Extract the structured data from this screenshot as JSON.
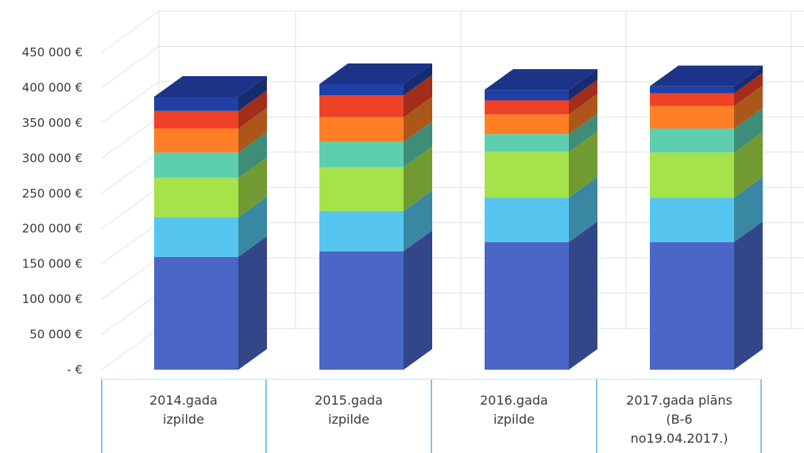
{
  "chart_data": {
    "type": "bar",
    "stacked": true,
    "three_d": true,
    "title": "",
    "xlabel": "",
    "ylabel": "",
    "ylim": [
      0,
      450000
    ],
    "y_ticks": [
      "- €",
      "50 000 €",
      "100 000 €",
      "150 000 €",
      "200 000 €",
      "250 000 €",
      "300 000 €",
      "350 000 €",
      "400 000 €",
      "450 000 €"
    ],
    "y_tick_values": [
      0,
      50000,
      100000,
      150000,
      200000,
      250000,
      300000,
      350000,
      400000,
      450000
    ],
    "grid": true,
    "legend": "none",
    "categories": [
      [
        "2014.gada",
        "izpilde"
      ],
      [
        "2015.gada",
        "izpilde"
      ],
      [
        "2016.gada",
        "izpilde"
      ],
      [
        "2017.gada plāns",
        "(B-6",
        "no19.04.2017.)"
      ]
    ],
    "series": [
      {
        "color": "#4A67C8",
        "values": [
          160000,
          168000,
          181000,
          181000
        ]
      },
      {
        "color": "#56C6F0",
        "values": [
          56000,
          57000,
          63000,
          63000
        ]
      },
      {
        "color": "#A6E34A",
        "values": [
          56000,
          62000,
          65000,
          64000
        ]
      },
      {
        "color": "#5DCFAE",
        "values": [
          36000,
          36000,
          25000,
          34000
        ]
      },
      {
        "color": "#FF7E26",
        "values": [
          34000,
          35000,
          28000,
          32000
        ]
      },
      {
        "color": "#EE4226",
        "values": [
          25000,
          31000,
          20000,
          18000
        ]
      },
      {
        "color": "#2140A5",
        "values": [
          20000,
          16000,
          15000,
          10000
        ]
      }
    ]
  }
}
